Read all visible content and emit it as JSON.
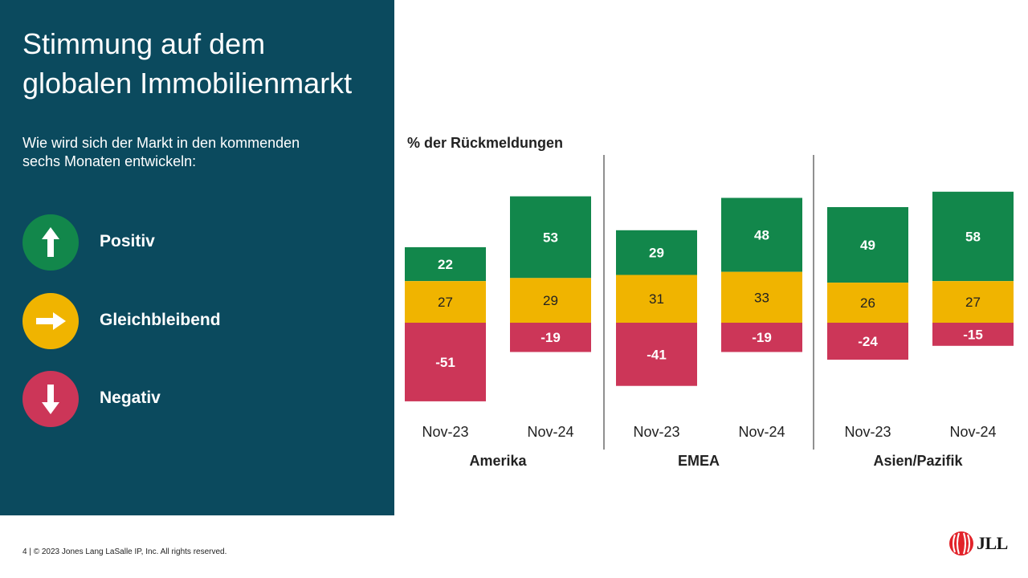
{
  "slide": {
    "title_line1": "Stimmung auf dem",
    "title_line2": "globalen Immobilienmarkt",
    "question_line1": "Wie wird sich der Markt in den kommenden",
    "question_line2": "sechs Monaten entwickeln:",
    "footer": "4 | © 2023 Jones Lang LaSalle IP, Inc. All rights reserved.",
    "logo_text": "JLL"
  },
  "legend": [
    {
      "label": "Positiv",
      "icon": "arrow-up-icon",
      "color": "#12874b"
    },
    {
      "label": "Gleichbleibend",
      "icon": "arrow-right-icon",
      "color": "#f0b400"
    },
    {
      "label": "Negativ",
      "icon": "arrow-down-icon",
      "color": "#cc3658"
    }
  ],
  "chart_data": {
    "type": "bar",
    "stacked": true,
    "title": "% der Rückmeldungen",
    "groups": [
      "Amerika",
      "EMEA",
      "Asien/Pazifik"
    ],
    "categories": [
      "Nov-23",
      "Nov-24",
      "Nov-23",
      "Nov-24",
      "Nov-23",
      "Nov-24"
    ],
    "category_group": [
      0,
      0,
      1,
      1,
      2,
      2
    ],
    "series": [
      {
        "name": "Positiv",
        "color": "#12874b",
        "values": [
          22,
          53,
          29,
          48,
          49,
          58
        ]
      },
      {
        "name": "Gleichbleibend",
        "color": "#f0b400",
        "values": [
          27,
          29,
          31,
          33,
          26,
          27
        ]
      },
      {
        "name": "Negativ",
        "color": "#cc3658",
        "values": [
          -51,
          -19,
          -41,
          -19,
          -24,
          -15
        ]
      }
    ],
    "grid": false,
    "legend_position": "left"
  }
}
